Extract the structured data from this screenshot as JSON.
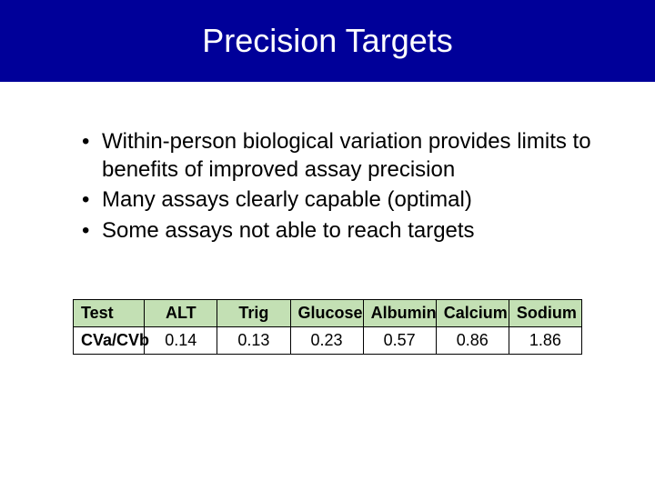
{
  "header": {
    "title": "Precision Targets",
    "background_color": "#000099",
    "text_color": "#ffffff",
    "title_fontsize": 36
  },
  "bullets": {
    "items": [
      "Within-person biological variation provides limits to benefits of improved assay precision",
      "Many assays clearly capable (optimal)",
      "Some assays not able to reach targets"
    ],
    "fontsize": 24,
    "text_color": "#000000"
  },
  "table": {
    "type": "table",
    "header_background": "#c3e0b4",
    "data_background": "#ffffff",
    "border_color": "#000000",
    "fontsize": 18,
    "columns": [
      "Test",
      "ALT",
      "Trig",
      "Glucose",
      "Albumin",
      "Calcium",
      "Sodium"
    ],
    "rows": [
      [
        "CVa/CVb",
        "0.14",
        "0.13",
        "0.23",
        "0.57",
        "0.86",
        "1.86"
      ]
    ]
  }
}
